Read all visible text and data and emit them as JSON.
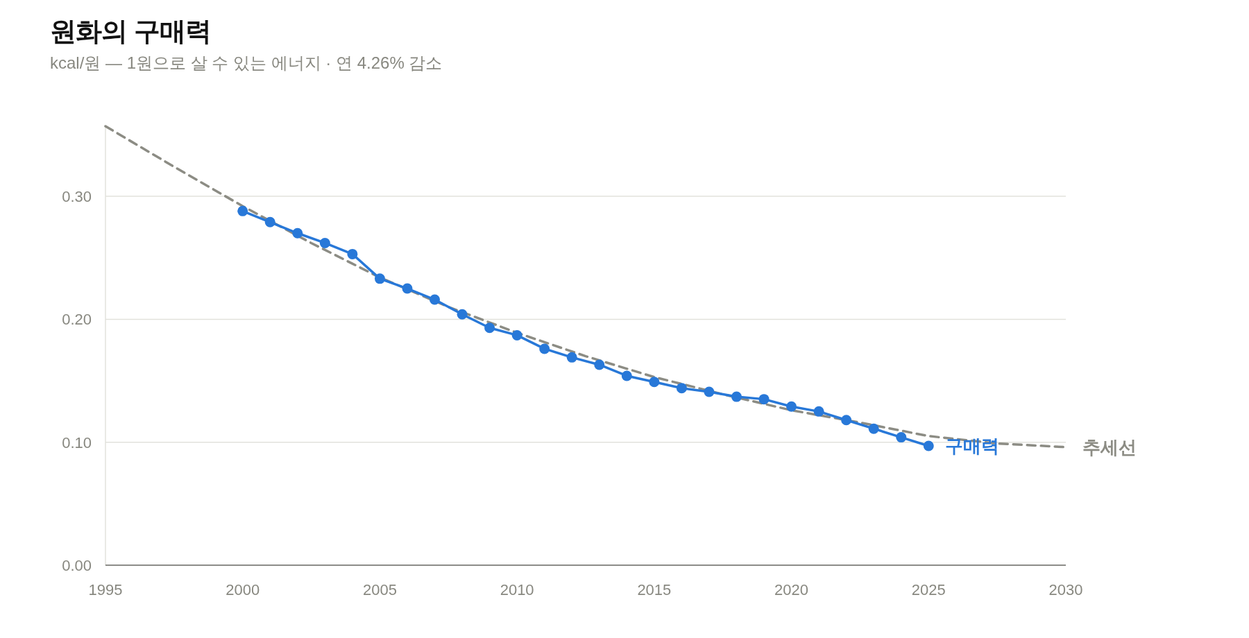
{
  "chart_data": {
    "type": "line",
    "title": "원화의 구매력",
    "subtitle": "kcal/원 — 1원으로 살 수 있는 에너지 · 연 4.26% 감소",
    "xlim": [
      1995,
      2030
    ],
    "xticks": [
      1995,
      2000,
      2005,
      2010,
      2015,
      2020,
      2025,
      2030
    ],
    "ylim": [
      0,
      0.357
    ],
    "yticks": [
      {
        "value": 0,
        "label": "0.00"
      },
      {
        "value": 0.1,
        "label": "0.10"
      },
      {
        "value": 0.2,
        "label": "0.20"
      },
      {
        "value": 0.3,
        "label": "0.30"
      }
    ],
    "grid": "y",
    "series": [
      {
        "name": "구매력",
        "color": "#2878d8",
        "marker": "circle",
        "line_style": "solid",
        "x": [
          2000,
          2001,
          2002,
          2003,
          2004,
          2005,
          2006,
          2007,
          2008,
          2009,
          2010,
          2011,
          2012,
          2013,
          2014,
          2015,
          2016,
          2017,
          2018,
          2019,
          2020,
          2021,
          2022,
          2023,
          2024,
          2025
        ],
        "values": [
          0.288,
          0.279,
          0.27,
          0.262,
          0.253,
          0.233,
          0.225,
          0.216,
          0.204,
          0.193,
          0.187,
          0.176,
          0.169,
          0.163,
          0.154,
          0.149,
          0.144,
          0.141,
          0.137,
          0.135,
          0.129,
          0.125,
          0.118,
          0.111,
          0.104,
          0.097
        ]
      },
      {
        "name": "추세선",
        "color": "#8c8c84",
        "marker": "none",
        "line_style": "dashed",
        "x": [
          1995,
          1997.5,
          2000,
          2002.5,
          2005,
          2007.5,
          2010,
          2012.5,
          2015,
          2017.5,
          2020,
          2022.5,
          2025,
          2027.5,
          2030
        ],
        "values": [
          0.357,
          0.324,
          0.292,
          0.262,
          0.234,
          0.21,
          0.189,
          0.17,
          0.153,
          0.139,
          0.126,
          0.116,
          0.105,
          0.099,
          0.096
        ]
      }
    ]
  }
}
